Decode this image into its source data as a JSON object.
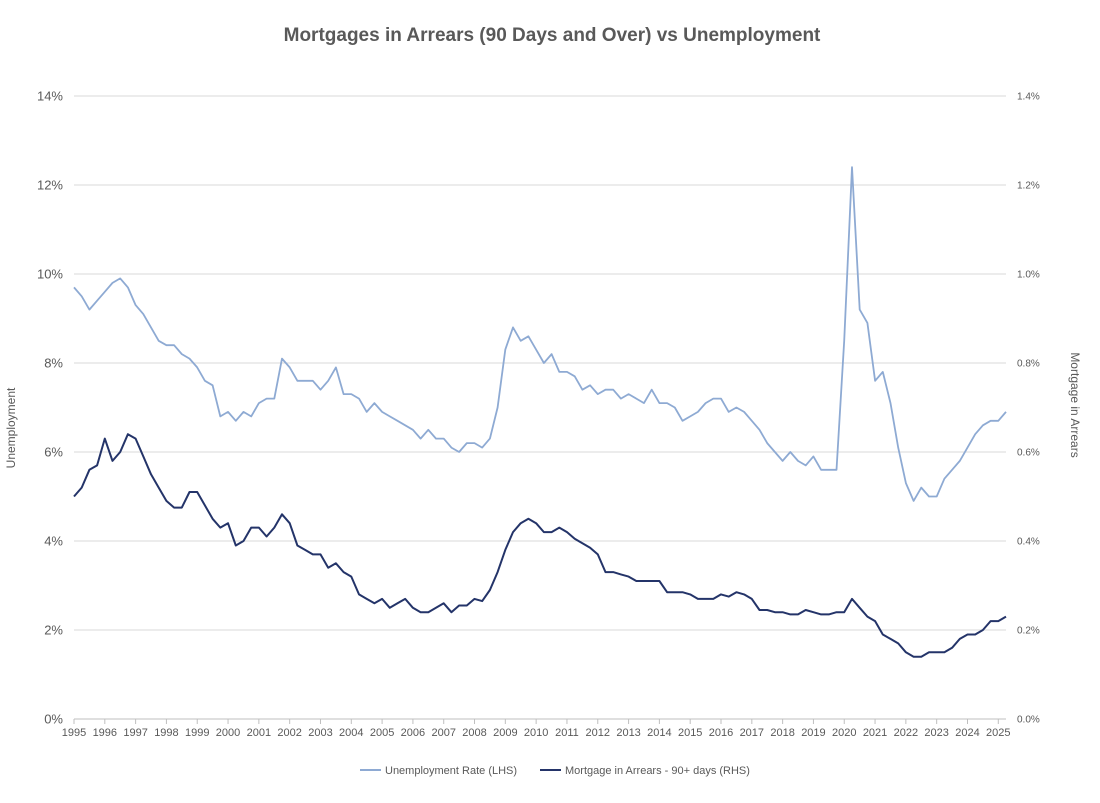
{
  "chart_data": {
    "type": "line",
    "title": "Mortgages in Arrears (90 Days and Over) vs Unemployment",
    "ylabel_left": "Unemployment",
    "ylabel_right": "Mortgage in Arrears",
    "xlabel": "",
    "xlim": [
      1995,
      2025.25
    ],
    "ylim_left": [
      0,
      14
    ],
    "ylim_right": [
      0,
      1.4
    ],
    "left_ticks": [
      0,
      2,
      4,
      6,
      8,
      10,
      12,
      14
    ],
    "left_tick_labels": [
      "0%",
      "2%",
      "4%",
      "6%",
      "8%",
      "10%",
      "12%",
      "14%"
    ],
    "right_ticks": [
      0,
      0.2,
      0.4,
      0.6,
      0.8,
      1.0,
      1.2,
      1.4
    ],
    "right_tick_labels": [
      "0.0%",
      "0.2%",
      "0.4%",
      "0.6%",
      "0.8%",
      "1.0%",
      "1.2%",
      "1.4%"
    ],
    "x_ticks": [
      1995,
      1996,
      1997,
      1998,
      1999,
      2000,
      2001,
      2002,
      2003,
      2004,
      2005,
      2006,
      2007,
      2008,
      2009,
      2010,
      2011,
      2012,
      2013,
      2014,
      2015,
      2016,
      2017,
      2018,
      2019,
      2020,
      2021,
      2022,
      2023,
      2024,
      2025
    ],
    "x_tick_labels": [
      "1995",
      "1996",
      "1997",
      "1998",
      "1999",
      "2000",
      "2001",
      "2002",
      "2003",
      "2004",
      "2005",
      "2006",
      "2007",
      "2008",
      "2009",
      "2010",
      "2011",
      "2012",
      "2013",
      "2014",
      "2015",
      "2016",
      "2017",
      "2018",
      "2019",
      "2020",
      "2021",
      "2022",
      "2023",
      "2024",
      "2025"
    ],
    "grid": true,
    "legend_position": "bottom-center",
    "series": [
      {
        "name": "Unemployment Rate (LHS)",
        "axis": "left",
        "color": "#8eaad3",
        "x": [
          1995.0,
          1995.25,
          1995.5,
          1995.75,
          1996.0,
          1996.25,
          1996.5,
          1996.75,
          1997.0,
          1997.25,
          1997.5,
          1997.75,
          1998.0,
          1998.25,
          1998.5,
          1998.75,
          1999.0,
          1999.25,
          1999.5,
          1999.75,
          2000.0,
          2000.25,
          2000.5,
          2000.75,
          2001.0,
          2001.25,
          2001.5,
          2001.75,
          2002.0,
          2002.25,
          2002.5,
          2002.75,
          2003.0,
          2003.25,
          2003.5,
          2003.75,
          2004.0,
          2004.25,
          2004.5,
          2004.75,
          2005.0,
          2005.25,
          2005.5,
          2005.75,
          2006.0,
          2006.25,
          2006.5,
          2006.75,
          2007.0,
          2007.25,
          2007.5,
          2007.75,
          2008.0,
          2008.25,
          2008.5,
          2008.75,
          2009.0,
          2009.25,
          2009.5,
          2009.75,
          2010.0,
          2010.25,
          2010.5,
          2010.75,
          2011.0,
          2011.25,
          2011.5,
          2011.75,
          2012.0,
          2012.25,
          2012.5,
          2012.75,
          2013.0,
          2013.25,
          2013.5,
          2013.75,
          2014.0,
          2014.25,
          2014.5,
          2014.75,
          2015.0,
          2015.25,
          2015.5,
          2015.75,
          2016.0,
          2016.25,
          2016.5,
          2016.75,
          2017.0,
          2017.25,
          2017.5,
          2017.75,
          2018.0,
          2018.25,
          2018.5,
          2018.75,
          2019.0,
          2019.25,
          2019.5,
          2019.75,
          2020.0,
          2020.25,
          2020.5,
          2020.75,
          2021.0,
          2021.25,
          2021.5,
          2021.75,
          2022.0,
          2022.25,
          2022.5,
          2022.75,
          2023.0,
          2023.25,
          2023.5,
          2023.75,
          2024.0,
          2024.25,
          2024.5,
          2024.75,
          2025.0,
          2025.25
        ],
        "values": [
          9.7,
          9.5,
          9.2,
          9.4,
          9.6,
          9.8,
          9.9,
          9.7,
          9.3,
          9.1,
          8.8,
          8.5,
          8.4,
          8.4,
          8.2,
          8.1,
          7.9,
          7.6,
          7.5,
          6.8,
          6.9,
          6.7,
          6.9,
          6.8,
          7.1,
          7.2,
          7.2,
          8.1,
          7.9,
          7.6,
          7.6,
          7.6,
          7.4,
          7.6,
          7.9,
          7.3,
          7.3,
          7.2,
          6.9,
          7.1,
          6.9,
          6.8,
          6.7,
          6.6,
          6.5,
          6.3,
          6.5,
          6.3,
          6.3,
          6.1,
          6.0,
          6.2,
          6.2,
          6.1,
          6.3,
          7.0,
          8.3,
          8.8,
          8.5,
          8.6,
          8.3,
          8.0,
          8.2,
          7.8,
          7.8,
          7.7,
          7.4,
          7.5,
          7.3,
          7.4,
          7.4,
          7.2,
          7.3,
          7.2,
          7.1,
          7.4,
          7.1,
          7.1,
          7.0,
          6.7,
          6.8,
          6.9,
          7.1,
          7.2,
          7.2,
          6.9,
          7.0,
          6.9,
          6.7,
          6.5,
          6.2,
          6.0,
          5.8,
          6.0,
          5.8,
          5.7,
          5.9,
          5.6,
          5.6,
          5.6,
          8.5,
          12.4,
          9.2,
          8.9,
          7.6,
          7.8,
          7.1,
          6.1,
          5.3,
          4.9,
          5.2,
          5.0,
          5.0,
          5.4,
          5.6,
          5.8,
          6.1,
          6.4,
          6.6,
          6.7,
          6.7,
          6.9
        ]
      },
      {
        "name": "Mortgage in Arrears - 90+ days (RHS)",
        "axis": "right",
        "color": "#243469",
        "x": [
          1995.0,
          1995.25,
          1995.5,
          1995.75,
          1996.0,
          1996.25,
          1996.5,
          1996.75,
          1997.0,
          1997.25,
          1997.5,
          1997.75,
          1998.0,
          1998.25,
          1998.5,
          1998.75,
          1999.0,
          1999.25,
          1999.5,
          1999.75,
          2000.0,
          2000.25,
          2000.5,
          2000.75,
          2001.0,
          2001.25,
          2001.5,
          2001.75,
          2002.0,
          2002.25,
          2002.5,
          2002.75,
          2003.0,
          2003.25,
          2003.5,
          2003.75,
          2004.0,
          2004.25,
          2004.5,
          2004.75,
          2005.0,
          2005.25,
          2005.5,
          2005.75,
          2006.0,
          2006.25,
          2006.5,
          2006.75,
          2007.0,
          2007.25,
          2007.5,
          2007.75,
          2008.0,
          2008.25,
          2008.5,
          2008.75,
          2009.0,
          2009.25,
          2009.5,
          2009.75,
          2010.0,
          2010.25,
          2010.5,
          2010.75,
          2011.0,
          2011.25,
          2011.5,
          2011.75,
          2012.0,
          2012.25,
          2012.5,
          2012.75,
          2013.0,
          2013.25,
          2013.5,
          2013.75,
          2014.0,
          2014.25,
          2014.5,
          2014.75,
          2015.0,
          2015.25,
          2015.5,
          2015.75,
          2016.0,
          2016.25,
          2016.5,
          2016.75,
          2017.0,
          2017.25,
          2017.5,
          2017.75,
          2018.0,
          2018.25,
          2018.5,
          2018.75,
          2019.0,
          2019.25,
          2019.5,
          2019.75,
          2020.0,
          2020.25,
          2020.5,
          2020.75,
          2021.0,
          2021.25,
          2021.5,
          2021.75,
          2022.0,
          2022.25,
          2022.5,
          2022.75,
          2023.0,
          2023.25,
          2023.5,
          2023.75,
          2024.0,
          2024.25,
          2024.5,
          2024.75,
          2025.0,
          2025.25
        ],
        "values": [
          0.5,
          0.52,
          0.56,
          0.57,
          0.63,
          0.58,
          0.6,
          0.64,
          0.63,
          0.59,
          0.55,
          0.52,
          0.49,
          0.475,
          0.475,
          0.51,
          0.51,
          0.48,
          0.45,
          0.43,
          0.44,
          0.39,
          0.4,
          0.43,
          0.43,
          0.41,
          0.43,
          0.46,
          0.44,
          0.39,
          0.38,
          0.37,
          0.37,
          0.34,
          0.35,
          0.33,
          0.32,
          0.28,
          0.27,
          0.26,
          0.27,
          0.25,
          0.26,
          0.27,
          0.25,
          0.24,
          0.24,
          0.25,
          0.26,
          0.24,
          0.255,
          0.255,
          0.27,
          0.265,
          0.29,
          0.33,
          0.38,
          0.42,
          0.44,
          0.45,
          0.44,
          0.42,
          0.42,
          0.43,
          0.42,
          0.405,
          0.395,
          0.385,
          0.37,
          0.33,
          0.33,
          0.325,
          0.32,
          0.31,
          0.31,
          0.31,
          0.31,
          0.285,
          0.285,
          0.285,
          0.28,
          0.27,
          0.27,
          0.27,
          0.28,
          0.275,
          0.285,
          0.28,
          0.27,
          0.245,
          0.245,
          0.24,
          0.24,
          0.235,
          0.235,
          0.245,
          0.24,
          0.235,
          0.235,
          0.24,
          0.24,
          0.27,
          0.25,
          0.23,
          0.22,
          0.19,
          0.18,
          0.17,
          0.15,
          0.14,
          0.14,
          0.15,
          0.15,
          0.15,
          0.16,
          0.18,
          0.19,
          0.19,
          0.2,
          0.22,
          0.22,
          0.23
        ]
      }
    ]
  }
}
